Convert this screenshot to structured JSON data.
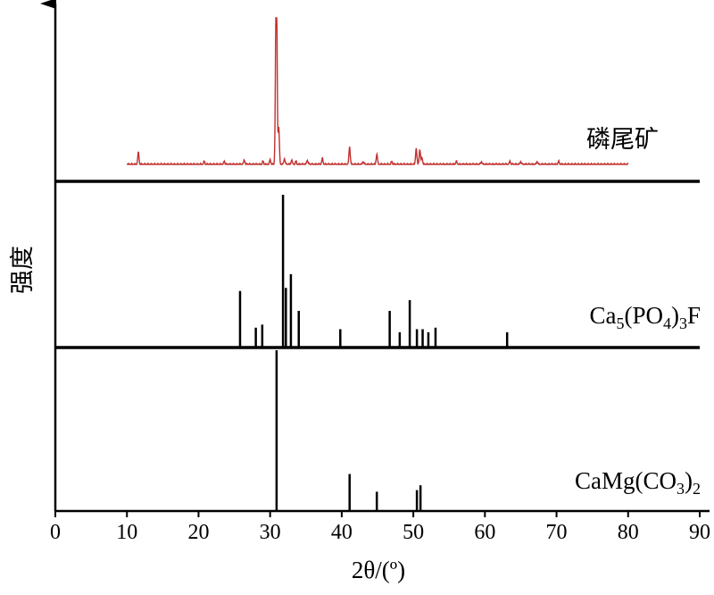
{
  "chart_data": {
    "type": "line",
    "xlabel": "2θ/(º)",
    "ylabel": "强度",
    "xlim": [
      0,
      90
    ],
    "xticks": [
      0,
      10,
      20,
      30,
      40,
      50,
      60,
      70,
      80,
      90
    ],
    "grid": false,
    "legend": "none",
    "panels": [
      {
        "label": "磷尾矿",
        "kind": "pattern",
        "color": "#c0302e",
        "x_range": [
          10,
          80
        ],
        "peaks": [
          [
            11.6,
            0.08
          ],
          [
            20.8,
            0.02
          ],
          [
            23.6,
            0.02
          ],
          [
            26.4,
            0.03
          ],
          [
            29.0,
            0.02
          ],
          [
            30.0,
            0.03
          ],
          [
            30.8,
            0.6
          ],
          [
            30.9,
            1.0
          ],
          [
            31.2,
            0.25
          ],
          [
            32.0,
            0.04
          ],
          [
            33.0,
            0.03
          ],
          [
            33.6,
            0.02
          ],
          [
            35.2,
            0.03
          ],
          [
            37.3,
            0.04
          ],
          [
            41.1,
            0.12
          ],
          [
            43.0,
            0.02
          ],
          [
            44.9,
            0.07
          ],
          [
            47.0,
            0.02
          ],
          [
            50.4,
            0.11
          ],
          [
            50.9,
            0.1
          ],
          [
            51.2,
            0.05
          ],
          [
            56.0,
            0.02
          ],
          [
            59.5,
            0.02
          ],
          [
            63.5,
            0.02
          ],
          [
            65.0,
            0.02
          ],
          [
            67.3,
            0.02
          ],
          [
            70.3,
            0.02
          ]
        ]
      },
      {
        "label": "Ca5(PO4)3F",
        "kind": "stick",
        "color": "#000000",
        "peaks": [
          [
            25.8,
            0.37
          ],
          [
            28.0,
            0.13
          ],
          [
            28.9,
            0.15
          ],
          [
            31.8,
            1.0
          ],
          [
            32.2,
            0.39
          ],
          [
            32.9,
            0.48
          ],
          [
            34.0,
            0.24
          ],
          [
            39.8,
            0.12
          ],
          [
            46.7,
            0.24
          ],
          [
            48.1,
            0.1
          ],
          [
            49.5,
            0.31
          ],
          [
            50.5,
            0.12
          ],
          [
            51.3,
            0.12
          ],
          [
            52.1,
            0.1
          ],
          [
            53.1,
            0.13
          ],
          [
            63.1,
            0.1
          ]
        ]
      },
      {
        "label": "CaMg(CO3)2",
        "kind": "stick",
        "color": "#000000",
        "peaks": [
          [
            30.9,
            1.0
          ],
          [
            41.1,
            0.23
          ],
          [
            44.9,
            0.12
          ],
          [
            50.5,
            0.13
          ],
          [
            51.0,
            0.16
          ]
        ]
      }
    ]
  }
}
